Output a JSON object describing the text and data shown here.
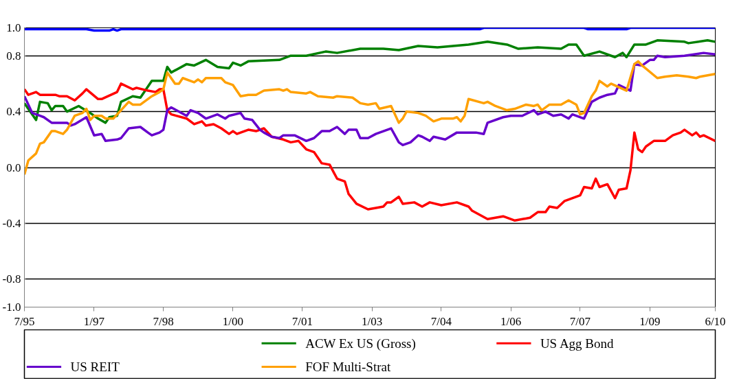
{
  "chart_data": {
    "type": "line",
    "ylim": [
      -1.0,
      1.0
    ],
    "yticks": [
      {
        "value": 1.0,
        "label": "1.0"
      },
      {
        "value": 0.8,
        "label": "0.8"
      },
      {
        "value": 0.4,
        "label": "0.4"
      },
      {
        "value": 0.0,
        "label": "0.0"
      },
      {
        "value": -0.4,
        "label": "-0.4"
      },
      {
        "value": -0.8,
        "label": "-0.8"
      },
      {
        "value": -1.0,
        "label": "-1.0"
      }
    ],
    "xlim": [
      "1995-07",
      "2010-06"
    ],
    "xticks": [
      {
        "value": "1995-07",
        "label": "7/95"
      },
      {
        "value": "1997-01",
        "label": "1/97"
      },
      {
        "value": "1998-07",
        "label": "7/98"
      },
      {
        "value": "2000-01",
        "label": "1/00"
      },
      {
        "value": "2001-07",
        "label": "7/01"
      },
      {
        "value": "2003-01",
        "label": "1/03"
      },
      {
        "value": "2004-07",
        "label": "7/04"
      },
      {
        "value": "2006-01",
        "label": "1/06"
      },
      {
        "value": "2007-07",
        "label": "7/07"
      },
      {
        "value": "2009-01",
        "label": "1/09"
      },
      {
        "value": "2010-06",
        "label": "6/10"
      }
    ],
    "grid": "y",
    "legend": "bottom",
    "series": [
      {
        "color": "#0000ff",
        "x": [
          "1995-07",
          "1996-11",
          "1997-01",
          "1997-05",
          "1997-06",
          "1997-07",
          "1997-08",
          "2005-05",
          "2005-06",
          "2007-08",
          "2007-09",
          "2008-07",
          "2008-08",
          "2010-06"
        ],
        "values": [
          0.99,
          0.99,
          0.98,
          0.98,
          0.99,
          0.98,
          0.99,
          0.99,
          1.0,
          1.0,
          0.99,
          0.99,
          1.0,
          1.0
        ]
      },
      {
        "name": "ACW Ex US (Gross)",
        "color": "#008000",
        "x": [
          "1995-07",
          "1995-10",
          "1995-11",
          "1996-01",
          "1996-02",
          "1996-03",
          "1996-05",
          "1996-06",
          "1996-09",
          "1996-12",
          "1997-02",
          "1997-04",
          "1997-05",
          "1997-07",
          "1997-08",
          "1997-11",
          "1998-01",
          "1998-04",
          "1998-07",
          "1998-08",
          "1998-09",
          "1999-01",
          "1999-03",
          "1999-06",
          "1999-09",
          "1999-12",
          "2000-01",
          "2000-03",
          "2000-05",
          "2001-01",
          "2001-04",
          "2001-08",
          "2002-01",
          "2002-04",
          "2002-10",
          "2003-04",
          "2003-08",
          "2004-01",
          "2004-06",
          "2005-02",
          "2005-07",
          "2005-12",
          "2006-03",
          "2006-08",
          "2007-02",
          "2007-04",
          "2007-06",
          "2007-08",
          "2007-12",
          "2008-04",
          "2008-06",
          "2008-07",
          "2008-09",
          "2008-12",
          "2009-03",
          "2009-10",
          "2009-11",
          "2010-04",
          "2010-06"
        ],
        "values": [
          0.46,
          0.34,
          0.47,
          0.46,
          0.41,
          0.44,
          0.44,
          0.4,
          0.44,
          0.39,
          0.35,
          0.32,
          0.36,
          0.37,
          0.47,
          0.51,
          0.5,
          0.62,
          0.62,
          0.72,
          0.68,
          0.74,
          0.73,
          0.77,
          0.72,
          0.71,
          0.75,
          0.73,
          0.76,
          0.77,
          0.8,
          0.8,
          0.83,
          0.82,
          0.85,
          0.85,
          0.84,
          0.87,
          0.86,
          0.88,
          0.9,
          0.88,
          0.85,
          0.86,
          0.85,
          0.88,
          0.88,
          0.8,
          0.83,
          0.79,
          0.82,
          0.79,
          0.88,
          0.88,
          0.91,
          0.9,
          0.89,
          0.91,
          0.9
        ]
      },
      {
        "name": "US Agg Bond",
        "color": "#ff0000",
        "x": [
          "1995-07",
          "1995-08",
          "1995-10",
          "1995-11",
          "1996-03",
          "1996-04",
          "1996-06",
          "1996-08",
          "1996-10",
          "1996-11",
          "1997-02",
          "1997-03",
          "1997-07",
          "1997-08",
          "1997-11",
          "1997-12",
          "1998-03",
          "1998-05",
          "1998-06",
          "1998-07",
          "1998-08",
          "1998-09",
          "1999-01",
          "1999-03",
          "1999-05",
          "1999-06",
          "1999-08",
          "1999-10",
          "1999-12",
          "2000-01",
          "2000-02",
          "2000-05",
          "2000-07",
          "2000-09",
          "2000-11",
          "2001-02",
          "2001-04",
          "2001-06",
          "2001-08",
          "2001-10",
          "2001-12",
          "2002-02",
          "2002-04",
          "2002-06",
          "2002-07",
          "2002-09",
          "2002-12",
          "2003-02",
          "2003-04",
          "2003-05",
          "2003-06",
          "2003-08",
          "2003-09",
          "2003-12",
          "2004-02",
          "2004-04",
          "2004-07",
          "2004-11",
          "2005-02",
          "2005-03",
          "2005-07",
          "2005-11",
          "2006-02",
          "2006-06",
          "2006-08",
          "2006-10",
          "2006-11",
          "2007-01",
          "2007-03",
          "2007-07",
          "2007-08",
          "2007-10",
          "2007-11",
          "2007-12",
          "2008-02",
          "2008-04",
          "2008-05",
          "2008-07",
          "2008-08",
          "2008-09",
          "2008-10",
          "2008-11",
          "2008-12",
          "2009-02",
          "2009-05",
          "2009-07",
          "2009-09",
          "2009-10",
          "2009-12",
          "2010-01",
          "2010-02",
          "2010-03",
          "2010-06"
        ],
        "values": [
          0.56,
          0.52,
          0.54,
          0.52,
          0.52,
          0.51,
          0.51,
          0.48,
          0.53,
          0.56,
          0.49,
          0.49,
          0.54,
          0.6,
          0.56,
          0.57,
          0.55,
          0.54,
          0.56,
          0.56,
          0.41,
          0.38,
          0.35,
          0.31,
          0.33,
          0.3,
          0.31,
          0.28,
          0.24,
          0.26,
          0.24,
          0.27,
          0.26,
          0.28,
          0.22,
          0.2,
          0.18,
          0.19,
          0.13,
          0.11,
          0.03,
          0.02,
          -0.08,
          -0.1,
          -0.19,
          -0.26,
          -0.3,
          -0.29,
          -0.28,
          -0.25,
          -0.25,
          -0.21,
          -0.26,
          -0.25,
          -0.28,
          -0.25,
          -0.27,
          -0.25,
          -0.28,
          -0.31,
          -0.37,
          -0.35,
          -0.38,
          -0.36,
          -0.32,
          -0.32,
          -0.28,
          -0.29,
          -0.24,
          -0.2,
          -0.14,
          -0.15,
          -0.08,
          -0.14,
          -0.12,
          -0.22,
          -0.16,
          -0.15,
          -0.02,
          0.25,
          0.13,
          0.11,
          0.15,
          0.19,
          0.19,
          0.23,
          0.25,
          0.27,
          0.23,
          0.25,
          0.22,
          0.23,
          0.19
        ]
      },
      {
        "name": "US REIT",
        "color": "#6600cc",
        "x": [
          "1995-07",
          "1995-09",
          "1995-11",
          "1995-12",
          "1996-02",
          "1996-06",
          "1996-07",
          "1996-08",
          "1996-11",
          "1997-01",
          "1997-03",
          "1997-04",
          "1997-07",
          "1997-08",
          "1997-10",
          "1998-01",
          "1998-03",
          "1998-04",
          "1998-06",
          "1998-07",
          "1998-08",
          "1998-09",
          "1999-01",
          "1999-02",
          "1999-04",
          "1999-06",
          "1999-09",
          "1999-11",
          "1999-12",
          "2000-03",
          "2000-04",
          "2000-06",
          "2000-08",
          "2000-09",
          "2000-11",
          "2001-01",
          "2001-02",
          "2001-05",
          "2001-08",
          "2001-10",
          "2001-12",
          "2002-02",
          "2002-04",
          "2002-06",
          "2002-07",
          "2002-09",
          "2002-10",
          "2002-12",
          "2003-02",
          "2003-06",
          "2003-08",
          "2003-09",
          "2003-11",
          "2004-01",
          "2004-02",
          "2004-04",
          "2004-05",
          "2004-08",
          "2004-11",
          "2005-04",
          "2005-06",
          "2005-07",
          "2005-11",
          "2006-01",
          "2006-04",
          "2006-07",
          "2006-08",
          "2006-10",
          "2006-12",
          "2007-02",
          "2007-04",
          "2007-05",
          "2007-08",
          "2007-10",
          "2007-12",
          "2008-02",
          "2008-04",
          "2008-05",
          "2008-08",
          "2008-09",
          "2008-11",
          "2009-01",
          "2009-02",
          "2009-03",
          "2009-05",
          "2009-10",
          "2010-03",
          "2010-06"
        ],
        "values": [
          0.51,
          0.39,
          0.37,
          0.36,
          0.32,
          0.32,
          0.3,
          0.31,
          0.36,
          0.23,
          0.24,
          0.19,
          0.2,
          0.21,
          0.28,
          0.29,
          0.25,
          0.23,
          0.25,
          0.27,
          0.41,
          0.43,
          0.37,
          0.41,
          0.39,
          0.35,
          0.38,
          0.35,
          0.37,
          0.39,
          0.35,
          0.34,
          0.27,
          0.25,
          0.22,
          0.21,
          0.23,
          0.23,
          0.19,
          0.21,
          0.26,
          0.26,
          0.29,
          0.24,
          0.27,
          0.27,
          0.21,
          0.21,
          0.24,
          0.28,
          0.18,
          0.16,
          0.18,
          0.23,
          0.22,
          0.19,
          0.22,
          0.2,
          0.25,
          0.25,
          0.24,
          0.32,
          0.36,
          0.37,
          0.37,
          0.41,
          0.38,
          0.4,
          0.37,
          0.38,
          0.35,
          0.38,
          0.35,
          0.47,
          0.5,
          0.52,
          0.53,
          0.59,
          0.55,
          0.74,
          0.73,
          0.77,
          0.77,
          0.8,
          0.79,
          0.8,
          0.82,
          0.81
        ]
      },
      {
        "name": "FOF Multi-Strat",
        "color": "#ffa000",
        "x": [
          "1995-07",
          "1995-08",
          "1995-10",
          "1995-11",
          "1995-12",
          "1996-02",
          "1996-03",
          "1996-05",
          "1996-06",
          "1996-08",
          "1996-10",
          "1996-11",
          "1996-12",
          "1997-01",
          "1997-03",
          "1997-04",
          "1997-06",
          "1997-08",
          "1997-10",
          "1997-11",
          "1998-01",
          "1998-04",
          "1998-06",
          "1998-07",
          "1998-08",
          "1998-10",
          "1998-11",
          "1998-12",
          "1999-03",
          "1999-04",
          "1999-05",
          "1999-06",
          "1999-10",
          "1999-11",
          "2000-01",
          "2000-03",
          "2000-05",
          "2000-07",
          "2000-09",
          "2001-01",
          "2001-02",
          "2001-03",
          "2001-04",
          "2001-08",
          "2001-09",
          "2001-11",
          "2002-03",
          "2002-04",
          "2002-08",
          "2002-10",
          "2002-12",
          "2003-02",
          "2003-03",
          "2003-06",
          "2003-08",
          "2003-09",
          "2003-10",
          "2004-01",
          "2004-03",
          "2004-05",
          "2004-07",
          "2004-10",
          "2004-11",
          "2004-12",
          "2005-01",
          "2005-02",
          "2005-06",
          "2005-07",
          "2005-09",
          "2005-12",
          "2006-02",
          "2006-05",
          "2006-07",
          "2006-08",
          "2006-09",
          "2006-11",
          "2007-02",
          "2007-04",
          "2007-06",
          "2007-07",
          "2007-08",
          "2007-10",
          "2007-11",
          "2007-12",
          "2008-02",
          "2008-03",
          "2008-07",
          "2008-09",
          "2008-10",
          "2008-11",
          "2009-03",
          "2009-05",
          "2009-08",
          "2009-11",
          "2010-01",
          "2010-02",
          "2010-06"
        ],
        "values": [
          -0.05,
          0.05,
          0.1,
          0.17,
          0.18,
          0.26,
          0.26,
          0.24,
          0.27,
          0.37,
          0.39,
          0.42,
          0.34,
          0.37,
          0.37,
          0.35,
          0.35,
          0.41,
          0.47,
          0.45,
          0.45,
          0.51,
          0.54,
          0.56,
          0.68,
          0.6,
          0.6,
          0.64,
          0.61,
          0.63,
          0.61,
          0.64,
          0.64,
          0.61,
          0.59,
          0.51,
          0.52,
          0.52,
          0.55,
          0.56,
          0.55,
          0.56,
          0.54,
          0.53,
          0.54,
          0.51,
          0.5,
          0.51,
          0.5,
          0.46,
          0.45,
          0.46,
          0.42,
          0.44,
          0.32,
          0.35,
          0.4,
          0.39,
          0.37,
          0.33,
          0.35,
          0.35,
          0.36,
          0.33,
          0.37,
          0.49,
          0.46,
          0.47,
          0.44,
          0.41,
          0.42,
          0.45,
          0.44,
          0.45,
          0.41,
          0.45,
          0.45,
          0.48,
          0.45,
          0.38,
          0.39,
          0.51,
          0.55,
          0.62,
          0.58,
          0.6,
          0.55,
          0.74,
          0.76,
          0.73,
          0.64,
          0.65,
          0.66,
          0.65,
          0.64,
          0.65,
          0.67
        ]
      }
    ]
  }
}
